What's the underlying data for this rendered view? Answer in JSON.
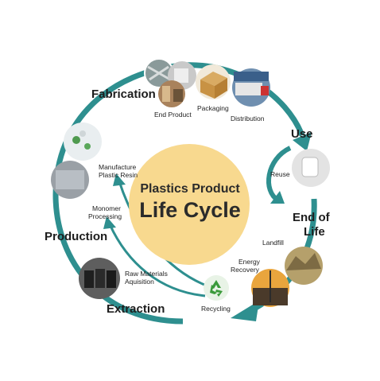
{
  "title": {
    "line1": "Plastics Product",
    "line2": "Life Cycle"
  },
  "stages": {
    "fabrication": "Fabrication",
    "use": "Use",
    "end_of_life_1": "End of",
    "end_of_life_2": "Life",
    "extraction": "Extraction",
    "production": "Production"
  },
  "steps": {
    "end_product": "End Product",
    "packaging": "Packaging",
    "distribution": "Distribution",
    "reuse": "Reuse",
    "landfill": "Landfill",
    "energy_recovery_1": "Energy",
    "energy_recovery_2": "Recovery",
    "recycling": "Recycling",
    "raw_materials_1": "Raw Materials",
    "raw_materials_2": "Aquisition",
    "monomer_1": "Monomer",
    "monomer_2": "Processing",
    "manufacture_1": "Manufacture",
    "manufacture_2": "Plastic Resin"
  },
  "colors": {
    "teal": "#2e8f8f",
    "center_fill": "#f8d98f",
    "recycle_green": "#3a9a3a"
  },
  "icons": [
    "recycle-icon"
  ]
}
